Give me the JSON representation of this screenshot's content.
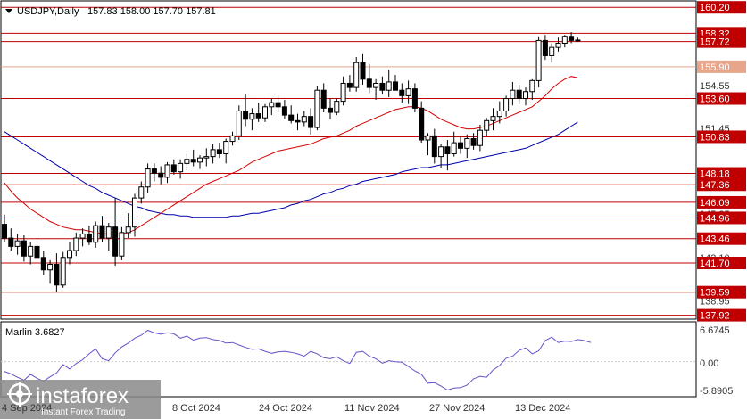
{
  "header": {
    "symbol": "USDJPY,Daily",
    "ohlc": "157.83 158.00 157.70 157.81"
  },
  "indicator": {
    "label": "Marlin 3.6827",
    "ticks": [
      "6.6745",
      "0.00",
      "-5.8905"
    ]
  },
  "watermark": {
    "brand": "instaforex",
    "tagline": "Instant Forex Trading",
    "x_axis_partial": "4 Sep 2024"
  },
  "price_axis": {
    "ticks": [
      "155.90",
      "154.55",
      "151.45",
      "148.35",
      "145.25",
      "142.10",
      "138.95"
    ],
    "levels": [
      {
        "price": 160.2,
        "label": "160.20"
      },
      {
        "price": 158.32,
        "label": "158.32"
      },
      {
        "price": 157.72,
        "label": "157.72"
      },
      {
        "price": 155.9,
        "label": "155.90",
        "color": "#e8a58a"
      },
      {
        "price": 153.6,
        "label": "153.60"
      },
      {
        "price": 150.83,
        "label": "150.83"
      },
      {
        "price": 148.18,
        "label": "148.18"
      },
      {
        "price": 147.36,
        "label": "147.36"
      },
      {
        "price": 146.09,
        "label": "146.09"
      },
      {
        "price": 144.96,
        "label": "144.96"
      },
      {
        "price": 143.46,
        "label": "143.46"
      },
      {
        "price": 141.7,
        "label": "141.70"
      },
      {
        "price": 139.59,
        "label": "139.59"
      },
      {
        "price": 137.92,
        "label": "137.92"
      }
    ]
  },
  "time_axis": [
    "8 Oct 2024",
    "24 Oct 2024",
    "11 Nov 2024",
    "27 Nov 2024",
    "13 Dec 2024"
  ],
  "colors": {
    "level_line": "#c00000",
    "level_label_bg": "#c00000",
    "level_label_soft": "#e8a58a",
    "ma_fast": "#d40000",
    "ma_slow": "#0000aa",
    "oscillator": "#6a50c8",
    "candle": "#000000"
  },
  "chart_data": {
    "type": "candlestick",
    "series": [
      {
        "o": 144.5,
        "h": 145.2,
        "l": 143.2,
        "c": 143.5
      },
      {
        "o": 143.5,
        "h": 144.2,
        "l": 142.6,
        "c": 142.9
      },
      {
        "o": 142.9,
        "h": 143.8,
        "l": 142.3,
        "c": 143.3
      },
      {
        "o": 143.3,
        "h": 143.7,
        "l": 141.8,
        "c": 142.2
      },
      {
        "o": 142.2,
        "h": 143.2,
        "l": 141.6,
        "c": 142.9
      },
      {
        "o": 142.9,
        "h": 143.3,
        "l": 141.7,
        "c": 142.1
      },
      {
        "o": 142.1,
        "h": 142.6,
        "l": 140.8,
        "c": 141.2
      },
      {
        "o": 141.2,
        "h": 141.9,
        "l": 140.2,
        "c": 141.6
      },
      {
        "o": 141.6,
        "h": 142.4,
        "l": 139.6,
        "c": 140.1
      },
      {
        "o": 140.1,
        "h": 142.5,
        "l": 139.9,
        "c": 142.1
      },
      {
        "o": 142.1,
        "h": 143.2,
        "l": 141.6,
        "c": 142.6
      },
      {
        "o": 142.6,
        "h": 143.9,
        "l": 142.2,
        "c": 143.5
      },
      {
        "o": 143.5,
        "h": 144.2,
        "l": 142.9,
        "c": 143.8
      },
      {
        "o": 143.8,
        "h": 144.4,
        "l": 143.0,
        "c": 143.2
      },
      {
        "o": 143.2,
        "h": 144.7,
        "l": 142.8,
        "c": 144.4
      },
      {
        "o": 144.4,
        "h": 145.1,
        "l": 143.2,
        "c": 143.5
      },
      {
        "o": 143.5,
        "h": 144.6,
        "l": 142.6,
        "c": 144.3
      },
      {
        "o": 144.3,
        "h": 146.4,
        "l": 141.5,
        "c": 142.2
      },
      {
        "o": 142.2,
        "h": 144.3,
        "l": 141.9,
        "c": 143.9
      },
      {
        "o": 143.9,
        "h": 145.3,
        "l": 143.5,
        "c": 144.3
      },
      {
        "o": 144.3,
        "h": 146.7,
        "l": 143.6,
        "c": 146.4
      },
      {
        "o": 146.4,
        "h": 147.6,
        "l": 146.0,
        "c": 147.2
      },
      {
        "o": 147.2,
        "h": 148.9,
        "l": 146.8,
        "c": 148.5
      },
      {
        "o": 148.5,
        "h": 148.9,
        "l": 147.6,
        "c": 148.2
      },
      {
        "o": 148.2,
        "h": 148.7,
        "l": 147.4,
        "c": 147.9
      },
      {
        "o": 147.9,
        "h": 149.0,
        "l": 147.5,
        "c": 148.8
      },
      {
        "o": 148.8,
        "h": 149.2,
        "l": 148.1,
        "c": 148.3
      },
      {
        "o": 148.3,
        "h": 149.2,
        "l": 147.8,
        "c": 148.9
      },
      {
        "o": 148.9,
        "h": 149.6,
        "l": 148.4,
        "c": 149.2
      },
      {
        "o": 149.2,
        "h": 149.9,
        "l": 148.7,
        "c": 149.0
      },
      {
        "o": 149.0,
        "h": 149.5,
        "l": 148.5,
        "c": 149.3
      },
      {
        "o": 149.3,
        "h": 150.0,
        "l": 148.7,
        "c": 149.4
      },
      {
        "o": 149.4,
        "h": 150.3,
        "l": 148.9,
        "c": 149.9
      },
      {
        "o": 149.9,
        "h": 150.4,
        "l": 149.3,
        "c": 149.6
      },
      {
        "o": 149.6,
        "h": 150.7,
        "l": 148.9,
        "c": 150.5
      },
      {
        "o": 150.5,
        "h": 151.2,
        "l": 150.2,
        "c": 150.9
      },
      {
        "o": 150.9,
        "h": 153.1,
        "l": 150.6,
        "c": 152.7
      },
      {
        "o": 152.7,
        "h": 153.9,
        "l": 151.6,
        "c": 152.1
      },
      {
        "o": 152.1,
        "h": 152.9,
        "l": 151.3,
        "c": 152.5
      },
      {
        "o": 152.5,
        "h": 153.3,
        "l": 151.9,
        "c": 152.2
      },
      {
        "o": 152.2,
        "h": 153.2,
        "l": 151.9,
        "c": 153.0
      },
      {
        "o": 153.0,
        "h": 153.6,
        "l": 152.4,
        "c": 153.3
      },
      {
        "o": 153.3,
        "h": 153.8,
        "l": 152.6,
        "c": 153.0
      },
      {
        "o": 153.0,
        "h": 153.5,
        "l": 152.1,
        "c": 152.4
      },
      {
        "o": 152.4,
        "h": 153.1,
        "l": 151.8,
        "c": 152.0
      },
      {
        "o": 152.0,
        "h": 152.5,
        "l": 151.3,
        "c": 151.9
      },
      {
        "o": 151.9,
        "h": 152.7,
        "l": 151.6,
        "c": 152.3
      },
      {
        "o": 152.3,
        "h": 152.9,
        "l": 151.0,
        "c": 151.5
      },
      {
        "o": 151.5,
        "h": 154.5,
        "l": 151.3,
        "c": 154.2
      },
      {
        "o": 154.2,
        "h": 154.7,
        "l": 152.6,
        "c": 152.9
      },
      {
        "o": 152.9,
        "h": 153.6,
        "l": 152.1,
        "c": 152.6
      },
      {
        "o": 152.6,
        "h": 153.6,
        "l": 152.4,
        "c": 153.4
      },
      {
        "o": 153.4,
        "h": 155.2,
        "l": 153.1,
        "c": 154.7
      },
      {
        "o": 154.7,
        "h": 155.3,
        "l": 154.1,
        "c": 154.4
      },
      {
        "o": 154.4,
        "h": 156.6,
        "l": 154.1,
        "c": 156.2
      },
      {
        "o": 156.2,
        "h": 156.8,
        "l": 154.6,
        "c": 155.0
      },
      {
        "o": 155.0,
        "h": 156.1,
        "l": 154.0,
        "c": 154.4
      },
      {
        "o": 154.4,
        "h": 155.0,
        "l": 153.5,
        "c": 154.7
      },
      {
        "o": 154.7,
        "h": 155.2,
        "l": 153.9,
        "c": 154.2
      },
      {
        "o": 154.2,
        "h": 155.7,
        "l": 153.7,
        "c": 154.8
      },
      {
        "o": 154.8,
        "h": 155.3,
        "l": 154.4,
        "c": 154.2
      },
      {
        "o": 154.2,
        "h": 154.7,
        "l": 153.3,
        "c": 153.8
      },
      {
        "o": 153.8,
        "h": 154.9,
        "l": 153.2,
        "c": 154.3
      },
      {
        "o": 154.3,
        "h": 154.7,
        "l": 152.6,
        "c": 152.9
      },
      {
        "o": 152.9,
        "h": 153.4,
        "l": 150.4,
        "c": 150.6
      },
      {
        "o": 150.6,
        "h": 151.1,
        "l": 149.5,
        "c": 150.9
      },
      {
        "o": 150.9,
        "h": 151.4,
        "l": 148.9,
        "c": 149.4
      },
      {
        "o": 149.4,
        "h": 150.3,
        "l": 148.6,
        "c": 150.1
      },
      {
        "o": 150.1,
        "h": 150.6,
        "l": 148.4,
        "c": 149.6
      },
      {
        "o": 149.6,
        "h": 151.2,
        "l": 149.4,
        "c": 150.4
      },
      {
        "o": 150.4,
        "h": 150.9,
        "l": 149.6,
        "c": 150.0
      },
      {
        "o": 150.0,
        "h": 151.0,
        "l": 149.3,
        "c": 150.7
      },
      {
        "o": 150.7,
        "h": 151.1,
        "l": 149.9,
        "c": 150.2
      },
      {
        "o": 150.2,
        "h": 151.7,
        "l": 149.8,
        "c": 151.3
      },
      {
        "o": 151.3,
        "h": 152.2,
        "l": 150.9,
        "c": 152.0
      },
      {
        "o": 152.0,
        "h": 152.9,
        "l": 151.3,
        "c": 152.3
      },
      {
        "o": 152.3,
        "h": 153.4,
        "l": 151.8,
        "c": 152.7
      },
      {
        "o": 152.7,
        "h": 153.8,
        "l": 152.3,
        "c": 153.6
      },
      {
        "o": 153.6,
        "h": 154.8,
        "l": 153.1,
        "c": 154.2
      },
      {
        "o": 154.2,
        "h": 154.6,
        "l": 153.2,
        "c": 153.6
      },
      {
        "o": 153.6,
        "h": 154.4,
        "l": 153.1,
        "c": 154.1
      },
      {
        "o": 154.1,
        "h": 155.0,
        "l": 153.5,
        "c": 154.9
      },
      {
        "o": 154.9,
        "h": 158.1,
        "l": 154.4,
        "c": 157.8
      },
      {
        "o": 157.8,
        "h": 158.2,
        "l": 156.4,
        "c": 156.7
      },
      {
        "o": 156.7,
        "h": 157.6,
        "l": 156.2,
        "c": 157.3
      },
      {
        "o": 157.3,
        "h": 158.0,
        "l": 157.0,
        "c": 157.6
      },
      {
        "o": 157.6,
        "h": 158.2,
        "l": 157.3,
        "c": 158.1
      },
      {
        "o": 158.1,
        "h": 158.4,
        "l": 157.6,
        "c": 157.8
      },
      {
        "o": 157.83,
        "h": 158.0,
        "l": 157.7,
        "c": 157.81
      }
    ],
    "ma_fast": [
      147.5,
      146.9,
      146.4,
      146.0,
      145.6,
      145.3,
      145.0,
      144.7,
      144.5,
      144.3,
      144.2,
      144.1,
      144.1,
      144.0,
      143.9,
      143.8,
      143.8,
      143.8,
      143.8,
      143.9,
      144.1,
      144.4,
      144.7,
      145.0,
      145.3,
      145.6,
      145.9,
      146.2,
      146.5,
      146.8,
      147.1,
      147.4,
      147.6,
      147.8,
      148.0,
      148.2,
      148.4,
      148.7,
      149.0,
      149.2,
      149.4,
      149.6,
      149.8,
      149.9,
      150.0,
      150.1,
      150.2,
      150.3,
      150.5,
      150.7,
      150.8,
      150.9,
      151.1,
      151.3,
      151.6,
      151.8,
      152.0,
      152.2,
      152.4,
      152.6,
      152.8,
      152.9,
      153.0,
      153.0,
      152.9,
      152.7,
      152.4,
      152.1,
      151.9,
      151.7,
      151.5,
      151.4,
      151.4,
      151.5,
      151.6,
      151.8,
      152.0,
      152.2,
      152.4,
      152.6,
      152.8,
      153.0,
      153.4,
      153.8,
      154.3,
      154.7,
      155.0,
      155.2,
      155.1
    ],
    "ma_slow": [
      151.2,
      150.9,
      150.6,
      150.3,
      150.0,
      149.7,
      149.4,
      149.1,
      148.8,
      148.5,
      148.2,
      147.9,
      147.6,
      147.3,
      147.1,
      146.8,
      146.6,
      146.4,
      146.2,
      146.0,
      145.8,
      145.7,
      145.5,
      145.4,
      145.3,
      145.2,
      145.2,
      145.1,
      145.1,
      145.0,
      145.0,
      145.0,
      145.0,
      145.0,
      145.0,
      145.1,
      145.1,
      145.2,
      145.3,
      145.3,
      145.4,
      145.5,
      145.6,
      145.7,
      145.9,
      146.0,
      146.2,
      146.3,
      146.5,
      146.7,
      146.8,
      147.0,
      147.1,
      147.3,
      147.4,
      147.6,
      147.7,
      147.8,
      147.9,
      148.0,
      148.1,
      148.3,
      148.4,
      148.5,
      148.6,
      148.6,
      148.7,
      148.8,
      148.8,
      148.9,
      149.0,
      149.1,
      149.2,
      149.3,
      149.4,
      149.5,
      149.6,
      149.7,
      149.8,
      149.9,
      150.0,
      150.2,
      150.4,
      150.6,
      150.8,
      151.0,
      151.3,
      151.6,
      151.9
    ],
    "oscillator": [
      -2.0,
      -2.5,
      -3.2,
      -3.8,
      -2.6,
      -3.4,
      -4.0,
      -3.1,
      -2.3,
      -0.6,
      -1.5,
      -0.4,
      0.4,
      1.6,
      2.6,
      0.6,
      0.2,
      1.8,
      3.0,
      3.8,
      4.8,
      5.4,
      6.4,
      5.9,
      5.6,
      5.9,
      5.7,
      4.8,
      5.2,
      4.4,
      4.8,
      4.9,
      4.5,
      4.3,
      3.8,
      3.9,
      3.4,
      2.9,
      2.5,
      2.6,
      2.1,
      1.7,
      2.0,
      2.1,
      1.9,
      1.6,
      1.1,
      2.1,
      1.6,
      0.8,
      0.6,
      1.0,
      0.2,
      -0.4,
      1.9,
      2.1,
      1.1,
      0.6,
      -0.3,
      0.2,
      0.0,
      -0.1,
      -1.0,
      -1.9,
      -2.6,
      -4.4,
      -4.3,
      -5.0,
      -5.8,
      -5.4,
      -5.3,
      -4.8,
      -3.5,
      -3.0,
      -3.2,
      -1.7,
      -0.8,
      0.7,
      1.1,
      2.3,
      2.8,
      1.6,
      2.2,
      4.3,
      5.0,
      3.9,
      4.2,
      4.1,
      4.5,
      4.3,
      3.9
    ],
    "price_range": [
      137.7,
      160.6
    ],
    "oscillator_range": [
      -5.8905,
      6.6745
    ]
  }
}
